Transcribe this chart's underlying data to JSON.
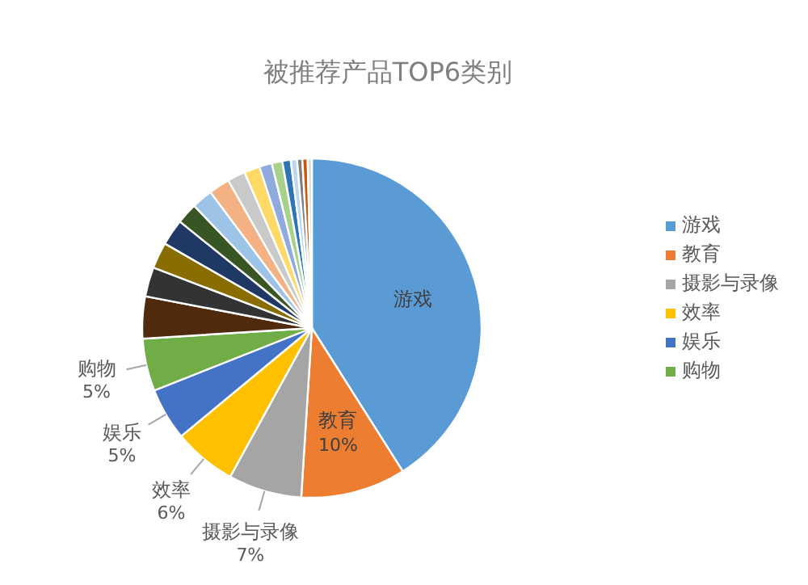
{
  "chart_data": {
    "type": "pie",
    "title": "被推荐产品TOP6类别",
    "legend": "right",
    "categories": [
      "游戏",
      "教育",
      "摄影与录像",
      "效率",
      "娱乐",
      "购物",
      null,
      null,
      null,
      null,
      null,
      null,
      null,
      null,
      null,
      null,
      null,
      null,
      null,
      null,
      null,
      null
    ],
    "values": [
      41,
      10,
      7,
      6,
      5,
      5,
      4,
      2.8,
      2.5,
      2.5,
      2,
      2,
      2,
      1.7,
      1.5,
      1.2,
      1,
      0.8,
      0.6,
      0.5,
      0.5,
      0.4
    ],
    "value_labels": [
      null,
      "10%",
      "7%",
      "6%",
      "5%",
      "5%",
      null,
      null,
      null,
      null,
      null,
      null,
      null,
      null,
      null,
      null,
      null,
      null,
      null,
      null,
      null,
      null
    ],
    "colors": [
      "#5b9bd5",
      "#ed7d31",
      "#a5a5a5",
      "#ffc000",
      "#4472c4",
      "#70ad47",
      "#4f2a0c",
      "#333333",
      "#8a6d00",
      "#1f3864",
      "#375623",
      "#9dc3e6",
      "#f4b183",
      "#c9c9c9",
      "#ffd966",
      "#8faadc",
      "#a9d18e",
      "#2e75b6",
      "#bdd7ee",
      "#7f7f7f",
      "#c55a11",
      "#dbdbdb"
    ]
  }
}
